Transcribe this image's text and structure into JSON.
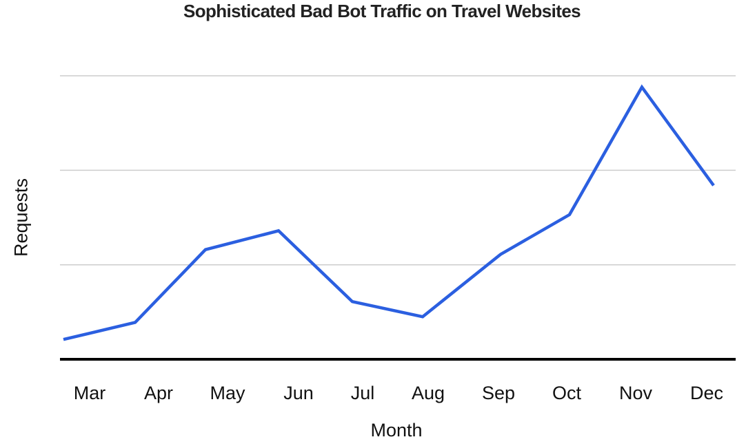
{
  "chart_data": {
    "type": "line",
    "title": "Sophisticated Bad Bot Traffic on Travel Websites",
    "xlabel": "Month",
    "ylabel": "Requests",
    "categories": [
      "Mar",
      "Apr",
      "May",
      "Jun",
      "Jul",
      "Aug",
      "Sep",
      "Oct",
      "Nov",
      "Dec"
    ],
    "series": [
      {
        "name": "Requests",
        "color": "#2b5fe0",
        "values": [
          0.21,
          0.39,
          1.16,
          1.36,
          0.61,
          0.45,
          1.11,
          1.53,
          2.88,
          1.84
        ]
      }
    ],
    "y_units": "relative (no tick labels shown; gridlines at 1, 2, 3)",
    "ylim": [
      0,
      3
    ],
    "gridlines": [
      1,
      2,
      3
    ],
    "grid": true,
    "legend": "none"
  },
  "colors": {
    "line": "#2b5fe0",
    "grid": "#cccccc",
    "axis": "#000000",
    "title": "#222222"
  }
}
